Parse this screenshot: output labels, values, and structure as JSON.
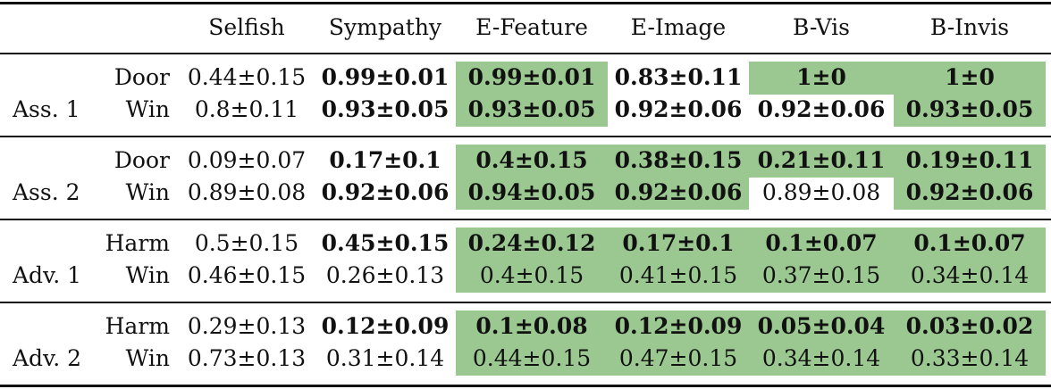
{
  "table": {
    "columns": [
      "Selfish",
      "Sympathy",
      "E-Feature",
      "E-Image",
      "B-Vis",
      "B-Invis"
    ],
    "highlight_color": "#9ac890",
    "groups": [
      {
        "label": "Ass. 1",
        "rows": [
          {
            "metric": "Door",
            "values": [
              "0.44±0.15",
              "0.99±0.01",
              "0.99±0.01",
              "0.83±0.11",
              "1±0",
              "1±0"
            ],
            "bold": [
              false,
              true,
              true,
              true,
              true,
              true
            ],
            "green": [
              false,
              false,
              true,
              false,
              true,
              true
            ]
          },
          {
            "metric": "Win",
            "values": [
              "0.8±0.11",
              "0.93±0.05",
              "0.93±0.05",
              "0.92±0.06",
              "0.92±0.06",
              "0.93±0.05"
            ],
            "bold": [
              false,
              true,
              true,
              true,
              true,
              true
            ],
            "green": [
              false,
              false,
              true,
              false,
              false,
              true
            ]
          }
        ]
      },
      {
        "label": "Ass. 2",
        "rows": [
          {
            "metric": "Door",
            "values": [
              "0.09±0.07",
              "0.17±0.1",
              "0.4±0.15",
              "0.38±0.15",
              "0.21±0.11",
              "0.19±0.11"
            ],
            "bold": [
              false,
              true,
              true,
              true,
              true,
              true
            ],
            "green": [
              false,
              false,
              true,
              true,
              true,
              true
            ]
          },
          {
            "metric": "Win",
            "values": [
              "0.89±0.08",
              "0.92±0.06",
              "0.94±0.05",
              "0.92±0.06",
              "0.89±0.08",
              "0.92±0.06"
            ],
            "bold": [
              false,
              true,
              true,
              true,
              false,
              true
            ],
            "green": [
              false,
              false,
              true,
              true,
              false,
              true
            ]
          }
        ]
      },
      {
        "label": "Adv. 1",
        "rows": [
          {
            "metric": "Harm",
            "values": [
              "0.5±0.15",
              "0.45±0.15",
              "0.24±0.12",
              "0.17±0.1",
              "0.1±0.07",
              "0.1±0.07"
            ],
            "bold": [
              false,
              true,
              true,
              true,
              true,
              true
            ],
            "green": [
              false,
              false,
              true,
              true,
              true,
              true
            ]
          },
          {
            "metric": "Win",
            "values": [
              "0.46±0.15",
              "0.26±0.13",
              "0.4±0.15",
              "0.41±0.15",
              "0.37±0.15",
              "0.34±0.14"
            ],
            "bold": [
              false,
              false,
              false,
              false,
              false,
              false
            ],
            "green": [
              false,
              false,
              true,
              true,
              true,
              true
            ]
          }
        ]
      },
      {
        "label": "Adv. 2",
        "rows": [
          {
            "metric": "Harm",
            "values": [
              "0.29±0.13",
              "0.12±0.09",
              "0.1±0.08",
              "0.12±0.09",
              "0.05±0.04",
              "0.03±0.02"
            ],
            "bold": [
              false,
              true,
              true,
              true,
              true,
              true
            ],
            "green": [
              false,
              false,
              true,
              true,
              true,
              true
            ]
          },
          {
            "metric": "Win",
            "values": [
              "0.73±0.13",
              "0.31±0.14",
              "0.44±0.15",
              "0.47±0.15",
              "0.34±0.14",
              "0.33±0.14"
            ],
            "bold": [
              false,
              false,
              false,
              false,
              false,
              false
            ],
            "green": [
              false,
              false,
              true,
              true,
              true,
              true
            ]
          }
        ]
      }
    ]
  }
}
